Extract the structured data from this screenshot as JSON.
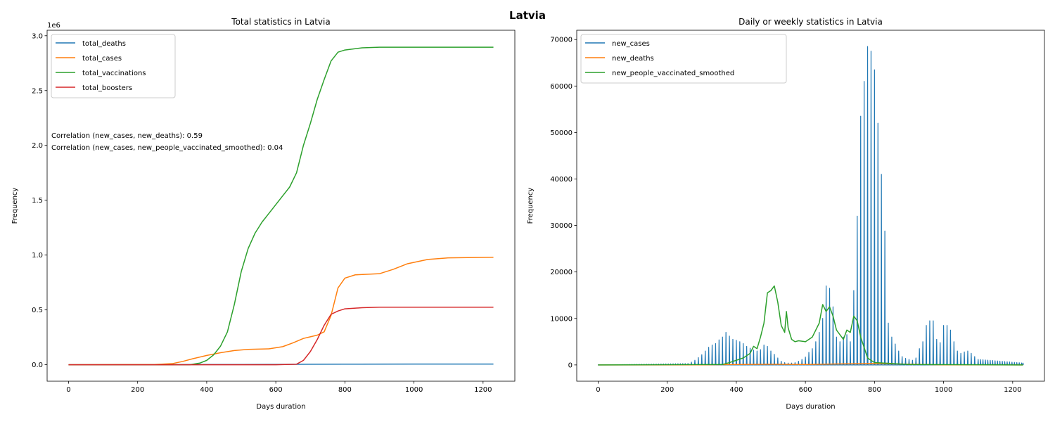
{
  "figure": {
    "suptitle": "Latvia"
  },
  "chart_data": [
    {
      "type": "line",
      "title": "Total statistics in Latvia",
      "xlabel": "Days duration",
      "ylabel": "Frequency",
      "offset_label": "1e6",
      "xlim": [
        -62,
        1292
      ],
      "ylim": [
        -0.15,
        3.05
      ],
      "xticks": [
        0,
        200,
        400,
        600,
        800,
        1000,
        1200
      ],
      "yticks": [
        0.0,
        0.5,
        1.0,
        1.5,
        2.0,
        2.5,
        3.0
      ],
      "ytick_labels": [
        "0.0",
        "0.5",
        "1.0",
        "1.5",
        "2.0",
        "2.5",
        "3.0"
      ],
      "legend_position": "upper-left",
      "annotations": [
        "Correlation (new_cases, new_deaths): 0.59",
        "Correlation (new_cases, new_people_vaccinated_smoothed): 0.04"
      ],
      "series": [
        {
          "name": "total_deaths",
          "color": "#1f77b4",
          "x": [
            0,
            300,
            400,
            500,
            600,
            700,
            800,
            1000,
            1230
          ],
          "y": [
            0,
            0.001,
            0.002,
            0.0025,
            0.003,
            0.0045,
            0.0055,
            0.0062,
            0.0065
          ]
        },
        {
          "name": "total_cases",
          "color": "#ff7f0e",
          "x": [
            0,
            250,
            300,
            330,
            360,
            400,
            440,
            480,
            520,
            580,
            620,
            650,
            680,
            700,
            720,
            740,
            760,
            780,
            800,
            830,
            900,
            940,
            980,
            1040,
            1100,
            1230
          ],
          "y": [
            0,
            0.002,
            0.01,
            0.03,
            0.055,
            0.085,
            0.11,
            0.13,
            0.14,
            0.145,
            0.165,
            0.2,
            0.24,
            0.255,
            0.27,
            0.3,
            0.45,
            0.7,
            0.79,
            0.82,
            0.83,
            0.87,
            0.92,
            0.96,
            0.975,
            0.98
          ]
        },
        {
          "name": "total_vaccinations",
          "color": "#2ca02c",
          "x": [
            0,
            350,
            380,
            400,
            420,
            440,
            460,
            480,
            500,
            520,
            540,
            560,
            580,
            600,
            620,
            640,
            660,
            680,
            700,
            720,
            740,
            760,
            780,
            800,
            850,
            900,
            1000,
            1230
          ],
          "y": [
            0,
            0,
            0.015,
            0.04,
            0.09,
            0.17,
            0.3,
            0.55,
            0.85,
            1.06,
            1.2,
            1.3,
            1.38,
            1.46,
            1.54,
            1.62,
            1.75,
            2.0,
            2.2,
            2.42,
            2.6,
            2.77,
            2.85,
            2.87,
            2.89,
            2.895,
            2.895,
            2.895
          ]
        },
        {
          "name": "total_boosters",
          "color": "#d62728",
          "x": [
            0,
            600,
            660,
            680,
            700,
            720,
            740,
            760,
            780,
            800,
            850,
            900,
            1000,
            1230
          ],
          "y": [
            0,
            0,
            0.005,
            0.04,
            0.12,
            0.23,
            0.36,
            0.46,
            0.49,
            0.51,
            0.52,
            0.525,
            0.525,
            0.525
          ]
        }
      ]
    },
    {
      "type": "line",
      "title": "Daily or weekly statistics in Latvia",
      "xlabel": "Days duration",
      "ylabel": "Frequency",
      "xlim": [
        -62,
        1292
      ],
      "ylim": [
        -3500,
        72000
      ],
      "xticks": [
        0,
        200,
        400,
        600,
        800,
        1000,
        1200
      ],
      "yticks": [
        0,
        10000,
        20000,
        30000,
        40000,
        50000,
        60000,
        70000
      ],
      "ytick_labels": [
        "0",
        "10000",
        "20000",
        "30000",
        "40000",
        "50000",
        "60000",
        "70000"
      ],
      "legend_position": "upper-left",
      "series": [
        {
          "name": "new_cases",
          "color": "#1f77b4",
          "x": [
            0,
            260,
            270,
            280,
            290,
            300,
            310,
            320,
            330,
            340,
            350,
            360,
            370,
            380,
            390,
            400,
            410,
            420,
            430,
            440,
            450,
            460,
            470,
            480,
            490,
            500,
            510,
            520,
            530,
            540,
            550,
            560,
            570,
            580,
            590,
            600,
            610,
            620,
            630,
            640,
            650,
            660,
            670,
            680,
            690,
            700,
            710,
            720,
            730,
            740,
            750,
            760,
            770,
            780,
            790,
            800,
            810,
            820,
            830,
            840,
            850,
            860,
            870,
            880,
            890,
            900,
            910,
            920,
            930,
            940,
            950,
            960,
            970,
            980,
            990,
            1000,
            1010,
            1020,
            1030,
            1040,
            1050,
            1060,
            1070,
            1080,
            1090,
            1100,
            1230
          ],
          "y": [
            0,
            300,
            600,
            1000,
            1600,
            2200,
            3000,
            3800,
            4300,
            4600,
            5400,
            6000,
            7000,
            6200,
            5500,
            5300,
            5000,
            4600,
            4000,
            3600,
            3200,
            3000,
            3300,
            4300,
            4000,
            3000,
            2300,
            1500,
            800,
            500,
            400,
            400,
            500,
            800,
            1200,
            1700,
            2700,
            3500,
            5000,
            7000,
            10000,
            17000,
            16500,
            12500,
            6000,
            5000,
            6000,
            6500,
            5000,
            16000,
            32000,
            53500,
            61000,
            68500,
            67500,
            63500,
            52000,
            41000,
            28800,
            9000,
            6000,
            4500,
            3000,
            1800,
            1400,
            1200,
            1000,
            1500,
            3500,
            5000,
            8500,
            9500,
            9500,
            5500,
            4800,
            8500,
            8500,
            7500,
            5000,
            3000,
            2500,
            2800,
            3000,
            2500,
            1800,
            1200,
            400
          ]
        },
        {
          "name": "new_deaths",
          "color": "#ff7f0e",
          "x": [
            0,
            300,
            400,
            500,
            600,
            700,
            800,
            1000,
            1230
          ],
          "y": [
            0,
            20,
            100,
            150,
            100,
            220,
            300,
            20,
            5
          ]
        },
        {
          "name": "new_people_vaccinated_smoothed",
          "color": "#2ca02c",
          "x": [
            0,
            360,
            380,
            400,
            420,
            440,
            450,
            460,
            470,
            480,
            490,
            500,
            510,
            520,
            530,
            540,
            545,
            550,
            560,
            570,
            580,
            600,
            620,
            640,
            650,
            660,
            670,
            680,
            690,
            700,
            710,
            720,
            730,
            740,
            750,
            760,
            780,
            800,
            900,
            1230
          ],
          "y": [
            0,
            100,
            500,
            1000,
            1500,
            2500,
            4000,
            3500,
            6000,
            9000,
            15500,
            16000,
            17000,
            13500,
            8500,
            7000,
            11500,
            8000,
            5500,
            5000,
            5200,
            5000,
            6000,
            9000,
            13000,
            11500,
            12500,
            10500,
            7500,
            6500,
            5500,
            7500,
            7000,
            10500,
            9500,
            6000,
            1500,
            500,
            100,
            0
          ]
        }
      ]
    }
  ]
}
